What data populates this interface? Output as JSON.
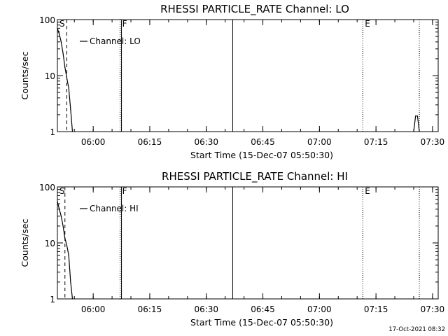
{
  "footer_timestamp": "17-Oct-2021 08:32",
  "chart_data": [
    {
      "type": "line",
      "title": "RHESSI PARTICLE_RATE Channel: LO",
      "xlabel": "Start Time (15-Dec-07 05:50:30)",
      "ylabel": "Counts/sec",
      "yscale": "log",
      "ylim": [
        1,
        100
      ],
      "xlim_minutes": [
        0,
        101
      ],
      "x_tick_labels": [
        "06:00",
        "06:15",
        "06:30",
        "06:45",
        "07:00",
        "07:15",
        "07:30"
      ],
      "y_tick_labels": [
        "1",
        "10",
        "100"
      ],
      "legend": {
        "placement": "top-left",
        "entries": [
          "Channel: LO"
        ]
      },
      "series": [
        {
          "name": "Channel: LO",
          "points": [
            {
              "t": "05:50:30",
              "y": 70
            },
            {
              "t": "05:51:00",
              "y": 55
            },
            {
              "t": "05:51:30",
              "y": 40
            },
            {
              "t": "05:52:00",
              "y": 25
            },
            {
              "t": "05:52:30",
              "y": 14
            },
            {
              "t": "05:53:00",
              "y": 9
            },
            {
              "t": "05:53:30",
              "y": 6
            },
            {
              "t": "05:54:00",
              "y": 2.5
            },
            {
              "t": "05:54:30",
              "y": 1
            }
          ]
        },
        {
          "name": "",
          "points": [
            {
              "t": "07:25:00",
              "y": 1
            },
            {
              "t": "07:25:30",
              "y": 1.9
            },
            {
              "t": "07:26:00",
              "y": 1.9
            },
            {
              "t": "07:26:30",
              "y": 1
            }
          ]
        }
      ],
      "markers": [
        {
          "label": "S",
          "t": "05:50:30",
          "style": "solid"
        },
        {
          "label": "",
          "t": "05:53:00",
          "style": "dashed"
        },
        {
          "label": "F",
          "t": "06:07:30",
          "style": "dotted"
        },
        {
          "label": "",
          "t": "06:07:30",
          "style": "solid"
        },
        {
          "label": "",
          "t": "06:37:00",
          "style": "solid"
        },
        {
          "label": "E",
          "t": "07:11:30",
          "style": "dotted"
        },
        {
          "label": "",
          "t": "07:26:30",
          "style": "dotted"
        }
      ]
    },
    {
      "type": "line",
      "title": "RHESSI PARTICLE_RATE Channel: HI",
      "xlabel": "Start Time (15-Dec-07 05:50:30)",
      "ylabel": "Counts/sec",
      "yscale": "log",
      "ylim": [
        1,
        100
      ],
      "xlim_minutes": [
        0,
        101
      ],
      "x_tick_labels": [
        "06:00",
        "06:15",
        "06:30",
        "06:45",
        "07:00",
        "07:15",
        "07:30"
      ],
      "y_tick_labels": [
        "1",
        "10",
        "100"
      ],
      "legend": {
        "placement": "top-left",
        "entries": [
          "Channel: HI"
        ]
      },
      "series": [
        {
          "name": "Channel: HI",
          "points": [
            {
              "t": "05:50:30",
              "y": 55
            },
            {
              "t": "05:51:00",
              "y": 40
            },
            {
              "t": "05:51:30",
              "y": 30
            },
            {
              "t": "05:52:00",
              "y": 20
            },
            {
              "t": "05:52:30",
              "y": 12
            },
            {
              "t": "05:53:00",
              "y": 9
            },
            {
              "t": "05:53:30",
              "y": 6
            },
            {
              "t": "05:54:00",
              "y": 2
            },
            {
              "t": "05:54:30",
              "y": 1
            }
          ]
        }
      ],
      "markers": [
        {
          "label": "S",
          "t": "05:50:30",
          "style": "solid"
        },
        {
          "label": "",
          "t": "05:52:30",
          "style": "dashed"
        },
        {
          "label": "F",
          "t": "06:07:30",
          "style": "dotted"
        },
        {
          "label": "",
          "t": "06:07:30",
          "style": "solid"
        },
        {
          "label": "",
          "t": "06:37:00",
          "style": "solid"
        },
        {
          "label": "E",
          "t": "07:11:30",
          "style": "dotted"
        },
        {
          "label": "",
          "t": "07:26:30",
          "style": "dotted"
        }
      ]
    }
  ]
}
